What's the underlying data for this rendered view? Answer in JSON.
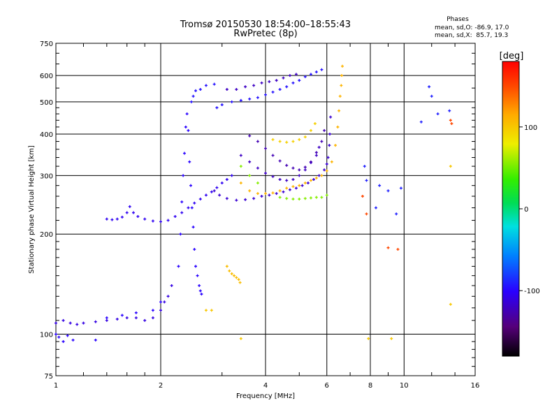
{
  "chart_data": {
    "type": "scatter",
    "title": "Tromsø 20150530 18:54:00–18:55:43",
    "subtitle": "RwPretec (8p)",
    "stats": {
      "heading": "Phases",
      "line_o": "mean, sd,O: -86.9, 17.0",
      "line_x": "mean, sd,X:  85.7, 19.3"
    },
    "xlabel": "Frequency [MHz]",
    "ylabel": "Stationary phase Virtual Height [km]",
    "x_scale": "log",
    "y_scale": "log",
    "xlim": [
      1,
      16
    ],
    "ylim": [
      75,
      750
    ],
    "x_ticks": [
      1,
      2,
      4,
      6,
      8,
      10,
      16
    ],
    "x_tick_labels": [
      "1",
      "2",
      "4",
      "6",
      "8",
      "10",
      "16"
    ],
    "y_ticks": [
      75,
      100,
      200,
      300,
      400,
      500,
      600,
      750
    ],
    "y_tick_labels": [
      "75",
      "100",
      "200",
      "300",
      "400",
      "500",
      "600",
      "750"
    ],
    "grid": true,
    "colorbar": {
      "label": "[deg]",
      "range": [
        -180,
        180
      ],
      "ticks": [
        100,
        0,
        -100
      ],
      "tick_labels": [
        "100",
        "0",
        "-100"
      ]
    },
    "series": [
      {
        "phase": -110,
        "points": [
          [
            1.0,
            108
          ],
          [
            1.05,
            110
          ],
          [
            1.1,
            108
          ],
          [
            1.15,
            107
          ],
          [
            1.2,
            108
          ],
          [
            1.3,
            109
          ],
          [
            1.4,
            110
          ],
          [
            1.5,
            111
          ],
          [
            1.6,
            112
          ],
          [
            1.7,
            112
          ],
          [
            1.8,
            110
          ],
          [
            1.9,
            112
          ],
          [
            2.0,
            118
          ],
          [
            2.05,
            125
          ],
          [
            2.1,
            130
          ],
          [
            2.15,
            140
          ]
        ]
      },
      {
        "phase": -100,
        "points": [
          [
            1.0,
            100
          ],
          [
            1.02,
            98
          ],
          [
            1.05,
            95
          ],
          [
            1.08,
            99
          ],
          [
            1.12,
            96
          ],
          [
            1.3,
            96
          ],
          [
            1.4,
            112
          ],
          [
            1.55,
            114
          ],
          [
            1.7,
            116
          ],
          [
            1.9,
            118
          ],
          [
            2.0,
            125
          ]
        ]
      },
      {
        "phase": -105,
        "points": [
          [
            1.4,
            222
          ],
          [
            1.45,
            221
          ],
          [
            1.5,
            222
          ],
          [
            1.55,
            225
          ],
          [
            1.6,
            232
          ],
          [
            1.63,
            242
          ],
          [
            1.67,
            232
          ],
          [
            1.72,
            226
          ],
          [
            1.8,
            222
          ],
          [
            1.9,
            219
          ],
          [
            2.0,
            218
          ],
          [
            2.1,
            220
          ],
          [
            2.2,
            226
          ],
          [
            2.3,
            232
          ],
          [
            2.4,
            240
          ],
          [
            2.5,
            248
          ],
          [
            2.6,
            255
          ],
          [
            2.7,
            262
          ],
          [
            2.8,
            268
          ],
          [
            2.9,
            276
          ],
          [
            3.0,
            285
          ],
          [
            3.1,
            292
          ],
          [
            3.2,
            300
          ]
        ]
      },
      {
        "phase": -100,
        "points": [
          [
            2.25,
            160
          ],
          [
            2.28,
            200
          ],
          [
            2.3,
            250
          ],
          [
            2.32,
            300
          ],
          [
            2.34,
            350
          ],
          [
            2.36,
            420
          ],
          [
            2.38,
            460
          ],
          [
            2.4,
            410
          ],
          [
            2.42,
            330
          ],
          [
            2.44,
            280
          ],
          [
            2.46,
            240
          ],
          [
            2.48,
            210
          ],
          [
            2.5,
            180
          ],
          [
            2.52,
            160
          ],
          [
            2.55,
            150
          ],
          [
            2.58,
            140
          ],
          [
            2.6,
            135
          ],
          [
            2.62,
            132
          ]
        ]
      },
      {
        "phase": -95,
        "points": [
          [
            2.45,
            500
          ],
          [
            2.48,
            520
          ],
          [
            2.52,
            540
          ],
          [
            2.6,
            545
          ],
          [
            2.7,
            560
          ],
          [
            2.85,
            565
          ],
          [
            2.9,
            480
          ],
          [
            3.0,
            490
          ],
          [
            3.2,
            500
          ],
          [
            3.4,
            505
          ],
          [
            3.6,
            510
          ],
          [
            3.8,
            515
          ],
          [
            4.0,
            525
          ],
          [
            4.2,
            535
          ],
          [
            4.4,
            545
          ],
          [
            4.6,
            555
          ],
          [
            4.8,
            570
          ],
          [
            5.0,
            580
          ],
          [
            5.2,
            595
          ],
          [
            5.4,
            605
          ],
          [
            5.6,
            615
          ],
          [
            5.8,
            625
          ]
        ]
      },
      {
        "phase": -120,
        "points": [
          [
            3.1,
            545
          ],
          [
            3.3,
            545
          ],
          [
            3.5,
            555
          ],
          [
            3.7,
            560
          ],
          [
            3.9,
            570
          ],
          [
            4.1,
            575
          ],
          [
            4.3,
            580
          ],
          [
            4.5,
            590
          ],
          [
            4.7,
            600
          ],
          [
            4.9,
            605
          ]
        ]
      },
      {
        "phase": -115,
        "points": [
          [
            2.85,
            270
          ],
          [
            2.95,
            262
          ],
          [
            3.1,
            256
          ],
          [
            3.3,
            253
          ],
          [
            3.5,
            254
          ],
          [
            3.7,
            256
          ],
          [
            3.9,
            260
          ],
          [
            4.1,
            262
          ],
          [
            4.3,
            265
          ],
          [
            4.5,
            268
          ],
          [
            4.7,
            272
          ],
          [
            4.9,
            275
          ],
          [
            5.1,
            280
          ],
          [
            5.3,
            285
          ],
          [
            5.5,
            292
          ],
          [
            5.7,
            300
          ],
          [
            5.9,
            312
          ],
          [
            6.0,
            325
          ],
          [
            6.05,
            340
          ],
          [
            6.1,
            370
          ],
          [
            6.12,
            400
          ],
          [
            6.15,
            450
          ]
        ]
      },
      {
        "phase": -120,
        "points": [
          [
            3.4,
            345
          ],
          [
            3.6,
            330
          ],
          [
            3.8,
            316
          ],
          [
            4.0,
            305
          ],
          [
            4.2,
            298
          ],
          [
            4.4,
            292
          ],
          [
            4.6,
            290
          ],
          [
            4.8,
            292
          ],
          [
            5.0,
            300
          ],
          [
            5.2,
            312
          ],
          [
            5.4,
            328
          ],
          [
            5.6,
            345
          ],
          [
            5.7,
            365
          ]
        ]
      },
      {
        "phase": -125,
        "points": [
          [
            3.6,
            395
          ],
          [
            3.8,
            380
          ],
          [
            4.0,
            362
          ],
          [
            4.2,
            345
          ],
          [
            4.4,
            332
          ],
          [
            4.6,
            322
          ],
          [
            4.8,
            316
          ],
          [
            5.0,
            312
          ],
          [
            5.2,
            318
          ],
          [
            5.4,
            330
          ],
          [
            5.6,
            352
          ],
          [
            5.8,
            380
          ],
          [
            5.9,
            410
          ]
        ]
      },
      {
        "phase": 110,
        "points": [
          [
            3.4,
            285
          ],
          [
            3.6,
            270
          ],
          [
            3.8,
            265
          ],
          [
            4.0,
            265
          ],
          [
            4.2,
            266
          ],
          [
            4.4,
            270
          ],
          [
            4.6,
            275
          ],
          [
            4.8,
            278
          ],
          [
            5.0,
            280
          ],
          [
            5.2,
            285
          ],
          [
            5.4,
            290
          ],
          [
            5.6,
            295
          ],
          [
            5.8,
            300
          ],
          [
            6.0,
            310
          ],
          [
            6.2,
            330
          ],
          [
            6.35,
            370
          ],
          [
            6.45,
            420
          ],
          [
            6.5,
            470
          ],
          [
            6.55,
            520
          ],
          [
            6.6,
            560
          ],
          [
            6.62,
            600
          ],
          [
            6.65,
            640
          ]
        ]
      },
      {
        "phase": 95,
        "points": [
          [
            4.2,
            385
          ],
          [
            4.4,
            380
          ],
          [
            4.6,
            378
          ],
          [
            4.8,
            380
          ],
          [
            5.0,
            385
          ],
          [
            5.2,
            392
          ],
          [
            5.4,
            410
          ],
          [
            5.55,
            430
          ]
        ]
      },
      {
        "phase": 55,
        "points": [
          [
            3.4,
            320
          ],
          [
            3.6,
            300
          ],
          [
            3.8,
            285
          ],
          [
            4.4,
            258
          ],
          [
            4.6,
            256
          ],
          [
            4.8,
            255
          ],
          [
            5.0,
            255
          ],
          [
            5.2,
            256
          ],
          [
            5.4,
            257
          ],
          [
            5.6,
            258
          ],
          [
            5.8,
            258
          ],
          [
            6.0,
            262
          ]
        ]
      },
      {
        "phase": 105,
        "points": [
          [
            3.1,
            160
          ],
          [
            3.15,
            155
          ],
          [
            3.2,
            152
          ],
          [
            3.25,
            150
          ],
          [
            3.3,
            148
          ],
          [
            3.35,
            146
          ],
          [
            3.38,
            143
          ]
        ]
      },
      {
        "phase": -90,
        "points": [
          [
            7.7,
            320
          ],
          [
            7.8,
            290
          ],
          [
            8.3,
            240
          ],
          [
            8.5,
            280
          ],
          [
            9.0,
            270
          ],
          [
            9.5,
            230
          ],
          [
            9.8,
            275
          ],
          [
            11.2,
            435
          ],
          [
            11.8,
            555
          ],
          [
            12.0,
            520
          ],
          [
            12.5,
            460
          ],
          [
            13.5,
            470
          ]
        ]
      },
      {
        "phase": 150,
        "points": [
          [
            7.6,
            260
          ],
          [
            7.8,
            230
          ],
          [
            9.0,
            182
          ],
          [
            9.6,
            180
          ],
          [
            13.6,
            440
          ],
          [
            13.7,
            430
          ]
        ]
      },
      {
        "phase": 100,
        "points": [
          [
            2.7,
            118
          ],
          [
            2.8,
            118
          ],
          [
            3.4,
            97
          ],
          [
            7.9,
            97
          ],
          [
            9.2,
            97
          ],
          [
            13.6,
            123
          ],
          [
            13.6,
            320
          ]
        ]
      }
    ]
  }
}
